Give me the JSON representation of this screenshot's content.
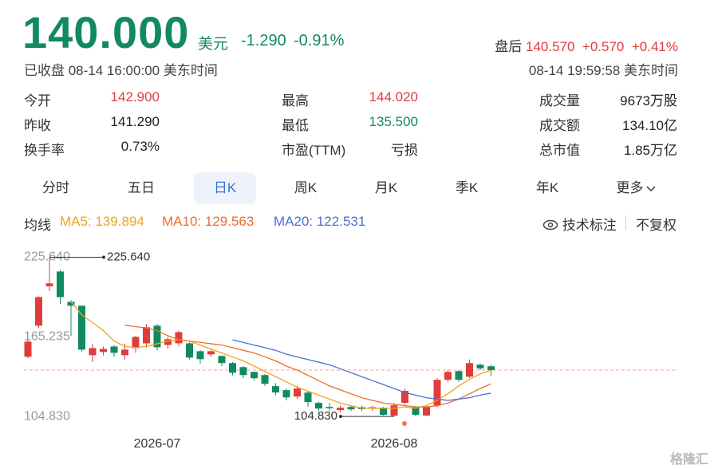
{
  "header": {
    "price": "140.000",
    "currency": "美元",
    "change": "-1.290",
    "change_pct": "-0.91%",
    "status": "已收盘 08-14 16:00:00 美东时间",
    "after_label": "盘后",
    "after_price": "140.570",
    "after_change": "+0.570",
    "after_pct": "+0.41%",
    "after_time": "08-14 19:59:58 美东时间"
  },
  "stats": [
    [
      {
        "label": "今开",
        "value": "142.900",
        "color": "#e03c3c"
      },
      {
        "label": "昨收",
        "value": "141.290",
        "color": "#222222"
      },
      {
        "label": "换手率",
        "value": "0.73%",
        "color": "#222222"
      }
    ],
    [
      {
        "label": "最高",
        "value": "144.020",
        "color": "#e03c3c"
      },
      {
        "label": "最低",
        "value": "135.500",
        "color": "#118a60"
      },
      {
        "label": "市盈(TTM)",
        "value": "亏损",
        "color": "#222222"
      }
    ],
    [
      {
        "label": "成交量",
        "value": "9673万股",
        "color": "#222222"
      },
      {
        "label": "成交额",
        "value": "134.10亿",
        "color": "#222222"
      },
      {
        "label": "总市值",
        "value": "1.85万亿",
        "color": "#222222"
      }
    ]
  ],
  "tabs": [
    "分时",
    "五日",
    "日K",
    "周K",
    "月K",
    "季K",
    "年K",
    "更多"
  ],
  "active_tab": 2,
  "ma_label": "均线",
  "tools": [
    "技术标注",
    "不复权"
  ],
  "watermark": "格隆汇",
  "chart_data": {
    "type": "candlestick",
    "categories": [
      null,
      null,
      null,
      null,
      null,
      null,
      null,
      null,
      null,
      null,
      null,
      null,
      "2026-07",
      null,
      null,
      null,
      null,
      null,
      null,
      null,
      null,
      null,
      null,
      null,
      null,
      null,
      null,
      null,
      null,
      null,
      null,
      null,
      null,
      null,
      "2026-08",
      null,
      null,
      null,
      null,
      null,
      null,
      null,
      null,
      null
    ],
    "open": [
      150.1,
      173.7,
      203.6,
      214.8,
      191.8,
      188.8,
      151.3,
      153.7,
      157.9,
      151.3,
      156.7,
      160.3,
      173.7,
      159.1,
      160.3,
      160.3,
      154.3,
      151.9,
      150.7,
      145.3,
      142.2,
      138.6,
      136.2,
      127.8,
      124.8,
      119.9,
      122.9,
      115.1,
      112.0,
      109.6,
      112.0,
      111.8,
      110.6,
      111.4,
      105.4,
      115.1,
      112.0,
      105.5,
      113.2,
      132.6,
      139.2,
      135.0,
      144.1,
      142.9
    ],
    "high": [
      163,
      196,
      225.64,
      216,
      193,
      189,
      160,
      158,
      159,
      160,
      166,
      175,
      175,
      165,
      170,
      161,
      155,
      156,
      151,
      146,
      143,
      139,
      137,
      130,
      126,
      128,
      124,
      116,
      115,
      113,
      113,
      113,
      113,
      112,
      115,
      126,
      113,
      113,
      134,
      140,
      140,
      148,
      145,
      144.02
    ],
    "low": [
      149,
      172,
      200,
      190,
      166,
      154,
      146,
      151,
      150,
      148,
      153,
      157,
      155,
      156,
      158,
      148,
      145,
      150,
      143,
      136,
      134,
      132,
      128,
      121,
      117,
      118,
      112,
      109,
      109,
      108,
      109,
      109,
      109,
      105.5,
      104.83,
      114,
      105,
      105,
      112,
      131,
      131,
      134,
      140,
      135.5
    ],
    "close": [
      161.6,
      195.4,
      205.8,
      195.4,
      188.8,
      155.5,
      156.7,
      156.1,
      153.1,
      155.5,
      165.2,
      172.5,
      157.3,
      163.4,
      168.8,
      149.5,
      148.3,
      154.3,
      145.3,
      138.0,
      136.2,
      133.8,
      129.6,
      123.0,
      119.3,
      126.0,
      115.7,
      110.8,
      111.0,
      111.4,
      110.2,
      110.4,
      111.8,
      106.0,
      113.2,
      124.2,
      106.0,
      112.0,
      132.6,
      138.6,
      132.6,
      145.3,
      141.29,
      140.0
    ],
    "up_color": "#e03c3c",
    "down_color": "#118a60",
    "series": [
      {
        "name": "MA5: 139.894",
        "color": "#f2a31b",
        "values": [
          null,
          null,
          null,
          null,
          192,
          182,
          176,
          170,
          162,
          158,
          157,
          158,
          160,
          162,
          163,
          162,
          159,
          156,
          153,
          150,
          147,
          143,
          139,
          135,
          131,
          127,
          124,
          121,
          118,
          115,
          113,
          111,
          111,
          111,
          111,
          112,
          111,
          113,
          117,
          122,
          128,
          133,
          137,
          139.894
        ]
      },
      {
        "name": "MA10: 129.563",
        "color": "#e8702a",
        "values": [
          null,
          null,
          null,
          null,
          null,
          null,
          null,
          null,
          null,
          174,
          173,
          172,
          170,
          166,
          163,
          162,
          161,
          160,
          159,
          157,
          155,
          153,
          150,
          147,
          143,
          140,
          136,
          132,
          128,
          125,
          122,
          119,
          117,
          115,
          114,
          113,
          112,
          112,
          113,
          115,
          118,
          122,
          126,
          129.563
        ]
      },
      {
        "name": "MA20: 122.531",
        "color": "#4b6fd6",
        "values": [
          null,
          null,
          null,
          null,
          null,
          null,
          null,
          null,
          null,
          null,
          null,
          null,
          null,
          null,
          null,
          null,
          null,
          null,
          null,
          163,
          161,
          159,
          157,
          155,
          152,
          150,
          148,
          146,
          144,
          141,
          138,
          135,
          132,
          129,
          126,
          123,
          121,
          119,
          118,
          117,
          118,
          119,
          121,
          122.531
        ]
      }
    ],
    "ylim": [
      97,
      232
    ],
    "yticks": [
      {
        "value": 104.83,
        "label": "104.830"
      },
      {
        "value": 165.235,
        "label": "165.235"
      },
      {
        "value": 225.64,
        "label": "225.640"
      }
    ],
    "ref_line": 140,
    "ref_color": "#f0a0a0",
    "annotations": [
      {
        "value": 225.64,
        "label": "225.640"
      },
      {
        "value": 104.83,
        "label": "104.830"
      }
    ]
  }
}
